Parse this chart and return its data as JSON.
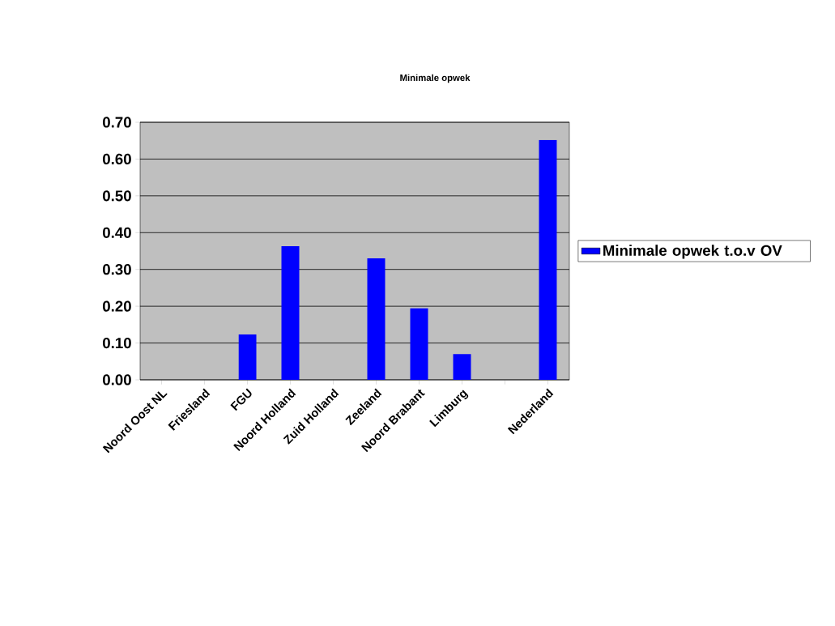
{
  "chart_data": {
    "type": "bar",
    "title": "Minimale opwek",
    "categories": [
      "Noord Oost NL",
      "Friesland",
      "FGU",
      "Noord Holland",
      "Zuid Holland",
      "Zeeland",
      "Noord Brabant",
      "Limburg",
      null,
      "Nederland"
    ],
    "series": [
      {
        "name": "Minimale opwek t.o.v OV",
        "color": "#0000ff",
        "values": [
          null,
          null,
          0.123,
          0.363,
          null,
          0.33,
          0.194,
          0.07,
          null,
          0.652
        ]
      }
    ],
    "ylim": [
      0,
      0.7
    ],
    "yticks": [
      {
        "value": 0,
        "label": "0.00"
      },
      {
        "value": 0.1,
        "label": "0.10"
      },
      {
        "value": 0.2,
        "label": "0.20"
      },
      {
        "value": 0.3,
        "label": "0.30"
      },
      {
        "value": 0.4,
        "label": "0.40"
      },
      {
        "value": 0.5,
        "label": "0.50"
      },
      {
        "value": 0.6,
        "label": "0.60"
      },
      {
        "value": 0.7,
        "label": "0.70"
      }
    ],
    "grid": "y",
    "legend": "right"
  }
}
